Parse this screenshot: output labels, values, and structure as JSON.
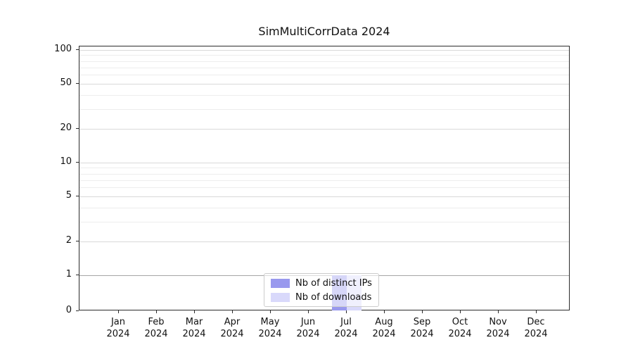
{
  "title": "SimMultiCorrData 2024",
  "colors": {
    "distinct_ips": "#9999ee",
    "downloads": "#d9d9fb",
    "grid_major": "#d9d9d9",
    "grid_minor": "#ededed",
    "grid_unit_line": "#a6a6a6",
    "axis": "#2b2b2b"
  },
  "legend": {
    "items": [
      {
        "label": "Nb of distinct IPs",
        "color": "#9999ee"
      },
      {
        "label": "Nb of downloads",
        "color": "#d9d9fb"
      }
    ]
  },
  "y_axis": {
    "tick_labels": [
      "100",
      "50",
      "20",
      "10",
      "5",
      "2",
      "1",
      "0"
    ]
  },
  "x_axis": {
    "months": [
      "Jan",
      "Feb",
      "Mar",
      "Apr",
      "May",
      "Jun",
      "Jul",
      "Aug",
      "Sep",
      "Oct",
      "Nov",
      "Dec"
    ],
    "year": "2024"
  },
  "chart_data": {
    "type": "bar",
    "title": "SimMultiCorrData 2024",
    "x_categories": [
      "Jan 2024",
      "Feb 2024",
      "Mar 2024",
      "Apr 2024",
      "May 2024",
      "Jun 2024",
      "Jul 2024",
      "Aug 2024",
      "Sep 2024",
      "Oct 2024",
      "Nov 2024",
      "Dec 2024"
    ],
    "series": [
      {
        "name": "Nb of distinct IPs",
        "color": "#9999ee",
        "values": [
          0,
          0,
          0,
          0,
          0,
          0,
          1,
          0,
          0,
          0,
          0,
          0
        ]
      },
      {
        "name": "Nb of downloads",
        "color": "#d9d9fb",
        "values": [
          0,
          0,
          0,
          0,
          0,
          0,
          1,
          0,
          0,
          0,
          0,
          0
        ]
      }
    ],
    "yscale": "symlog",
    "yticks": [
      0,
      1,
      2,
      5,
      10,
      20,
      50,
      100
    ],
    "ylim": [
      0,
      100
    ],
    "grid": true,
    "legend_position": "lower center"
  }
}
